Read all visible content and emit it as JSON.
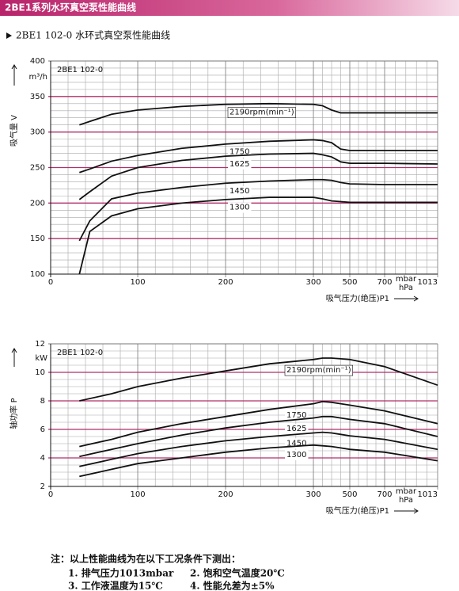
{
  "page_title": "2BE1系列水环真空泵性能曲线",
  "section_title": "2BE1 102-0 水环式真空泵性能曲线",
  "chart_data": [
    {
      "type": "line",
      "title": "2BE1 102-0",
      "y_label": "吸气量 V",
      "y_unit": "m³/h",
      "x_label": "吸气压力(绝压)P1",
      "x_units": [
        "mbar",
        "hPa"
      ],
      "x": [
        33,
        45,
        70,
        100,
        150,
        200,
        250,
        300,
        350,
        400,
        450,
        500,
        700,
        1013
      ],
      "xlim": [
        0,
        1013
      ],
      "xticks": [
        0,
        100,
        200,
        300,
        500,
        700,
        1013
      ],
      "ylim": [
        100,
        400
      ],
      "yticks": [
        100,
        150,
        200,
        250,
        300,
        350,
        400
      ],
      "grid": true,
      "series": [
        {
          "name": "2190rpm(min⁻¹)",
          "color": "#111111",
          "values": [
            310,
            315,
            325,
            331,
            336,
            339,
            340,
            339,
            337,
            331,
            327,
            327,
            327,
            327
          ]
        },
        {
          "name": "1750",
          "color": "#111111",
          "values": [
            243,
            248,
            259,
            267,
            277,
            283,
            287,
            289,
            288,
            285,
            276,
            274,
            274,
            274
          ]
        },
        {
          "name": "1625",
          "color": "#111111",
          "values": [
            205,
            216,
            238,
            250,
            260,
            266,
            269,
            270,
            268,
            265,
            258,
            256,
            256,
            255
          ]
        },
        {
          "name": "1450",
          "color": "#111111",
          "values": [
            147,
            175,
            206,
            214,
            222,
            228,
            231,
            233,
            233,
            232,
            229,
            227,
            226,
            226
          ]
        },
        {
          "name": "1300",
          "color": "#111111",
          "values": [
            100,
            160,
            182,
            192,
            200,
            205,
            208,
            208,
            206,
            203,
            202,
            201,
            201,
            201
          ]
        }
      ]
    },
    {
      "type": "line",
      "title": "2BE1 102-0",
      "y_label": "轴功率 P",
      "y_unit": "kW",
      "x_label": "吸气压力(绝压)P1",
      "x_units": [
        "mbar",
        "hPa"
      ],
      "x": [
        33,
        70,
        100,
        150,
        200,
        250,
        300,
        350,
        400,
        450,
        500,
        700,
        1013
      ],
      "xlim": [
        0,
        1013
      ],
      "xticks": [
        0,
        100,
        200,
        300,
        500,
        700,
        1013
      ],
      "ylim": [
        2,
        12
      ],
      "yticks": [
        2,
        4,
        6,
        8,
        10,
        12
      ],
      "grid": true,
      "series": [
        {
          "name": "2190rpm(min⁻¹)",
          "color": "#111111",
          "values": [
            8.0,
            8.5,
            9.0,
            9.6,
            10.1,
            10.6,
            10.9,
            11.0,
            11.0,
            10.95,
            10.9,
            10.4,
            9.1
          ]
        },
        {
          "name": "1750",
          "color": "#111111",
          "values": [
            4.8,
            5.3,
            5.8,
            6.4,
            6.9,
            7.4,
            7.8,
            7.95,
            7.9,
            7.8,
            7.7,
            7.3,
            6.4
          ]
        },
        {
          "name": "1625",
          "color": "#111111",
          "values": [
            4.1,
            4.6,
            5.0,
            5.6,
            6.1,
            6.5,
            6.8,
            6.9,
            6.9,
            6.8,
            6.7,
            6.4,
            5.5
          ]
        },
        {
          "name": "1450",
          "color": "#111111",
          "values": [
            3.4,
            3.9,
            4.3,
            4.8,
            5.2,
            5.5,
            5.75,
            5.8,
            5.75,
            5.65,
            5.55,
            5.3,
            4.6
          ]
        },
        {
          "name": "1300",
          "color": "#111111",
          "values": [
            2.7,
            3.2,
            3.6,
            4.0,
            4.4,
            4.7,
            4.9,
            4.85,
            4.8,
            4.7,
            4.6,
            4.4,
            3.8
          ]
        }
      ]
    }
  ],
  "notes": {
    "title": "注：以上性能曲线为在以下工况条件下测出：",
    "items": [
      "1. 排气压力1013mbar",
      "2. 饱和空气温度20℃",
      "3. 工作液温度为15℃",
      "4. 性能允差为±5%"
    ]
  }
}
